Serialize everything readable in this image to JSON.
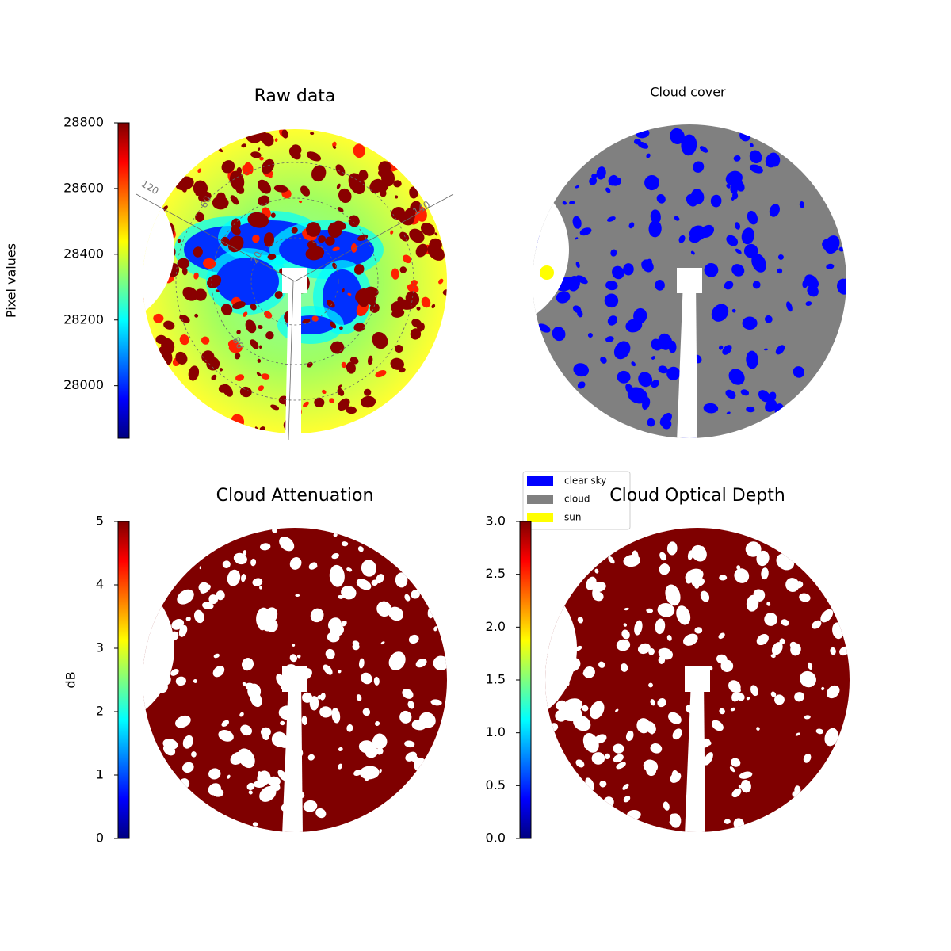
{
  "chart_data": [
    {
      "type": "sky-image",
      "title": "Raw data",
      "colorbar_label": "Pixel values",
      "colormap": "jet",
      "clim": [
        27840,
        28800
      ],
      "cticks": [
        28000,
        28200,
        28400,
        28600,
        28800
      ],
      "polar_labels": [
        "120",
        "60",
        "20",
        "80",
        "140"
      ]
    },
    {
      "type": "cloud-mask",
      "title": "Cloud cover",
      "series": [
        {
          "name": "clear sky",
          "color": "#0000ff"
        },
        {
          "name": "cloud",
          "color": "#808080"
        },
        {
          "name": "sun",
          "color": "#ffff00"
        }
      ]
    },
    {
      "type": "sky-image",
      "title": "Cloud Attenuation",
      "colorbar_label": "dB",
      "colormap": "jet",
      "clim": [
        0,
        5
      ],
      "cticks": [
        0,
        1,
        2,
        3,
        4,
        5
      ]
    },
    {
      "type": "sky-image",
      "title": "Cloud Optical Depth",
      "colormap": "jet",
      "clim": [
        0,
        3
      ],
      "cticks": [
        {
          "value": 0,
          "label": "0.0"
        },
        0.5,
        {
          "value": 1,
          "label": "1.0"
        },
        1.5,
        {
          "value": 2,
          "label": "2.0"
        },
        2.5,
        {
          "value": 3,
          "label": "3.0"
        }
      ]
    }
  ]
}
